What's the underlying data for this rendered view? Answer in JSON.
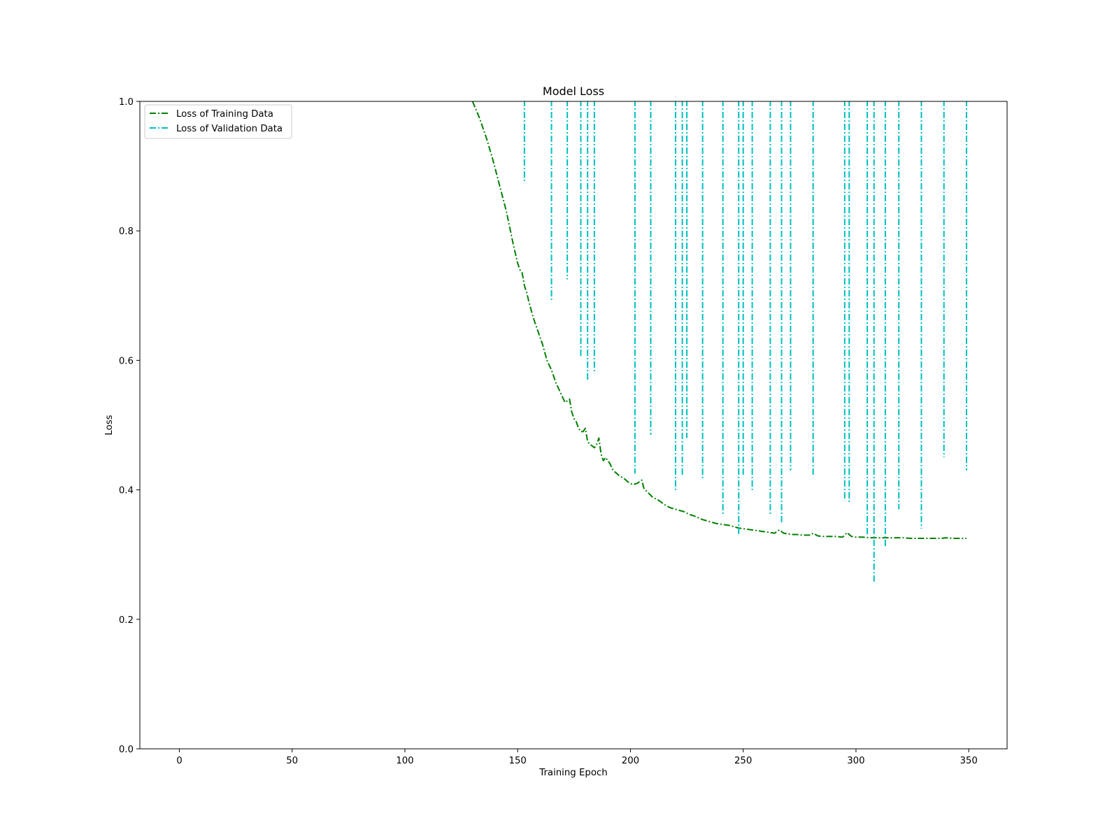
{
  "chart_data": {
    "type": "line",
    "title": "Model Loss",
    "xlabel": "Training Epoch",
    "ylabel": "Loss",
    "xlim": [
      -17.5,
      367
    ],
    "ylim": [
      0,
      1
    ],
    "xticks": [
      0,
      50,
      100,
      150,
      200,
      250,
      300,
      350
    ],
    "yticks": [
      0.0,
      0.2,
      0.4,
      0.6,
      0.8,
      1.0
    ],
    "tick_labels_x": [
      "0",
      "50",
      "100",
      "150",
      "200",
      "250",
      "300",
      "350"
    ],
    "tick_labels_y": [
      "0.0",
      "0.2",
      "0.4",
      "0.6",
      "0.8",
      "1.0"
    ],
    "grid": false,
    "legend_position": "top-left",
    "series": [
      {
        "name": "Loss of Training Data",
        "color": "#008000",
        "linestyle": "dashdot",
        "x": [
          130,
          133,
          136,
          139,
          142,
          145,
          148,
          150,
          151,
          152,
          153,
          154,
          155,
          157,
          159,
          161,
          163,
          165,
          167,
          169,
          171,
          173,
          174,
          175,
          176,
          177,
          178,
          179,
          180,
          181,
          182,
          183,
          184,
          185,
          186,
          187,
          188,
          189,
          190,
          191,
          192,
          193,
          195,
          197,
          199,
          201,
          203,
          205,
          206,
          208,
          210,
          212,
          214,
          216,
          218,
          220,
          222,
          224,
          226,
          228,
          230,
          232,
          234,
          236,
          238,
          240,
          242,
          244,
          246,
          248,
          250,
          252,
          254,
          256,
          258,
          260,
          262,
          264,
          265,
          266,
          268,
          270,
          272,
          274,
          276,
          278,
          280,
          281,
          283,
          285,
          288,
          291,
          294,
          295,
          296,
          298,
          300,
          303,
          306,
          309,
          312,
          315,
          318,
          321,
          324,
          327,
          330,
          333,
          336,
          338,
          340,
          343,
          346,
          349
        ],
        "y": [
          1.0,
          0.975,
          0.945,
          0.91,
          0.87,
          0.83,
          0.78,
          0.75,
          0.74,
          0.735,
          0.715,
          0.705,
          0.69,
          0.665,
          0.645,
          0.625,
          0.6,
          0.585,
          0.565,
          0.55,
          0.535,
          0.54,
          0.52,
          0.51,
          0.505,
          0.495,
          0.49,
          0.49,
          0.495,
          0.475,
          0.47,
          0.468,
          0.465,
          0.47,
          0.48,
          0.455,
          0.445,
          0.45,
          0.445,
          0.44,
          0.432,
          0.428,
          0.422,
          0.418,
          0.412,
          0.408,
          0.41,
          0.415,
          0.402,
          0.395,
          0.388,
          0.385,
          0.38,
          0.375,
          0.372,
          0.37,
          0.368,
          0.366,
          0.362,
          0.36,
          0.357,
          0.354,
          0.352,
          0.35,
          0.348,
          0.347,
          0.346,
          0.345,
          0.343,
          0.341,
          0.34,
          0.339,
          0.338,
          0.337,
          0.336,
          0.335,
          0.334,
          0.333,
          0.336,
          0.338,
          0.333,
          0.332,
          0.331,
          0.331,
          0.33,
          0.33,
          0.33,
          0.333,
          0.329,
          0.328,
          0.328,
          0.328,
          0.327,
          0.33,
          0.334,
          0.328,
          0.327,
          0.327,
          0.326,
          0.326,
          0.326,
          0.326,
          0.326,
          0.326,
          0.325,
          0.325,
          0.325,
          0.325,
          0.325,
          0.325,
          0.326,
          0.325,
          0.325,
          0.325
        ]
      },
      {
        "name": "Loss of Validation Data",
        "color": "#00BFBF",
        "linestyle": "dashdot",
        "spikes": [
          {
            "x": 153,
            "min": 0.875
          },
          {
            "x": 165,
            "min": 0.69
          },
          {
            "x": 172,
            "min": 0.725
          },
          {
            "x": 178,
            "min": 0.605
          },
          {
            "x": 181,
            "min": 0.57
          },
          {
            "x": 184,
            "min": 0.58
          },
          {
            "x": 202,
            "min": 0.425
          },
          {
            "x": 209,
            "min": 0.485
          },
          {
            "x": 220,
            "min": 0.398
          },
          {
            "x": 223,
            "min": 0.42
          },
          {
            "x": 225,
            "min": 0.48
          },
          {
            "x": 232,
            "min": 0.415
          },
          {
            "x": 241,
            "min": 0.36
          },
          {
            "x": 248,
            "min": 0.332
          },
          {
            "x": 250,
            "min": 0.42
          },
          {
            "x": 254,
            "min": 0.398
          },
          {
            "x": 262,
            "min": 0.36
          },
          {
            "x": 267,
            "min": 0.347
          },
          {
            "x": 271,
            "min": 0.43
          },
          {
            "x": 281,
            "min": 0.42
          },
          {
            "x": 295,
            "min": 0.383
          },
          {
            "x": 297,
            "min": 0.38
          },
          {
            "x": 305,
            "min": 0.33
          },
          {
            "x": 308,
            "min": 0.255
          },
          {
            "x": 313,
            "min": 0.312
          },
          {
            "x": 319,
            "min": 0.37
          },
          {
            "x": 329,
            "min": 0.34
          },
          {
            "x": 339,
            "min": 0.45
          },
          {
            "x": 349,
            "min": 0.43
          }
        ]
      }
    ]
  }
}
